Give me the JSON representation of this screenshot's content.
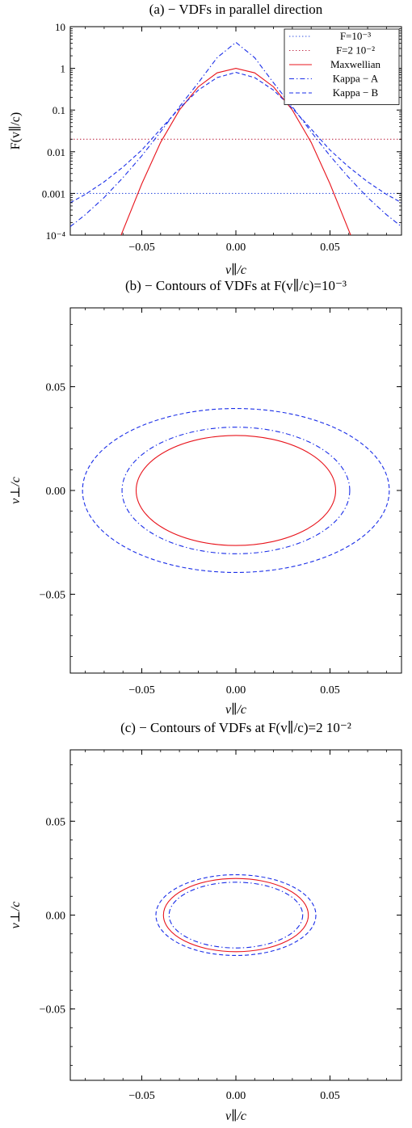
{
  "chart_data": [
    {
      "type": "line",
      "title": "(a) − VDFs in parallel direction",
      "xlabel": "v∥/c",
      "ylabel": "F(v∥/c)",
      "xlim": [
        -0.088,
        0.088
      ],
      "ylim": [
        0.0001,
        10
      ],
      "yscale": "log",
      "grid": false,
      "legend_position": "top-right",
      "x_ticks": [
        -0.05,
        0.0,
        0.05
      ],
      "x_tick_labels": [
        "−0.05",
        "0.00",
        "0.05"
      ],
      "y_ticks": [
        0.0001,
        0.001,
        0.01,
        0.1,
        1,
        10
      ],
      "y_tick_labels": [
        "10⁻⁴",
        "0.001",
        "0.01",
        "0.1",
        "1",
        "10"
      ],
      "series": [
        {
          "name": "F=10⁻³",
          "style": "dotted",
          "color": "#3050e0",
          "x": [
            -0.088,
            0.088
          ],
          "y": [
            0.001,
            0.001
          ]
        },
        {
          "name": "F=2 10⁻²",
          "style": "dotted",
          "color": "#c0304a",
          "x": [
            -0.088,
            0.088
          ],
          "y": [
            0.02,
            0.02
          ]
        },
        {
          "name": "Maxwellian",
          "style": "solid",
          "color": "#e8141c",
          "x": [
            -0.061,
            -0.05,
            -0.04,
            -0.03,
            -0.02,
            -0.01,
            0.0,
            0.01,
            0.02,
            0.03,
            0.04,
            0.05,
            0.061
          ],
          "y": [
            0.0001,
            0.0017,
            0.0168,
            0.1,
            0.36,
            0.78,
            1.0,
            0.78,
            0.36,
            0.1,
            0.0168,
            0.0017,
            0.0001
          ]
        },
        {
          "name": "Kappa − A",
          "style": "dashdot",
          "color": "#1a2ee8",
          "x": [
            -0.088,
            -0.08,
            -0.07,
            -0.06,
            -0.05,
            -0.04,
            -0.03,
            -0.02,
            -0.01,
            0.0,
            0.01,
            0.02,
            0.03,
            0.04,
            0.05,
            0.06,
            0.07,
            0.08,
            0.088
          ],
          "y": [
            0.00016,
            0.00031,
            0.0008,
            0.0024,
            0.008,
            0.03,
            0.12,
            0.45,
            1.8,
            4.2,
            1.8,
            0.45,
            0.12,
            0.03,
            0.008,
            0.0024,
            0.0008,
            0.00031,
            0.00016
          ]
        },
        {
          "name": "Kappa − B",
          "style": "dashed",
          "color": "#1a2ee8",
          "x": [
            -0.088,
            -0.08,
            -0.07,
            -0.06,
            -0.05,
            -0.04,
            -0.03,
            -0.02,
            -0.01,
            0.0,
            0.01,
            0.02,
            0.03,
            0.04,
            0.05,
            0.06,
            0.07,
            0.08,
            0.088
          ],
          "y": [
            0.0006,
            0.00095,
            0.0019,
            0.0043,
            0.011,
            0.035,
            0.11,
            0.3,
            0.6,
            0.8,
            0.6,
            0.3,
            0.11,
            0.035,
            0.011,
            0.0043,
            0.0019,
            0.00095,
            0.0006
          ]
        }
      ]
    },
    {
      "type": "contour",
      "title": "(b) − Contours of VDFs at F(v∥/c)=10⁻³",
      "xlabel": "v∥/c",
      "ylabel": "v⊥/c",
      "xlim": [
        -0.088,
        0.088
      ],
      "ylim": [
        -0.088,
        0.088
      ],
      "grid": false,
      "x_ticks": [
        -0.05,
        0.0,
        0.05
      ],
      "x_tick_labels": [
        "−0.05",
        "0.00",
        "0.05"
      ],
      "y_ticks": [
        -0.05,
        0.0,
        0.05
      ],
      "y_tick_labels": [
        "−0.05",
        "0.00",
        "0.05"
      ],
      "series": [
        {
          "name": "Maxwellian",
          "style": "solid",
          "color": "#e8141c",
          "semi_axis_parallel": 0.053,
          "semi_axis_perp": 0.0265
        },
        {
          "name": "Kappa − A",
          "style": "dashdot",
          "color": "#1a2ee8",
          "semi_axis_parallel": 0.0605,
          "semi_axis_perp": 0.0305
        },
        {
          "name": "Kappa − B",
          "style": "dashed",
          "color": "#1a2ee8",
          "semi_axis_parallel": 0.0815,
          "semi_axis_perp": 0.0395
        }
      ]
    },
    {
      "type": "contour",
      "title": "(c) − Contours of VDFs at F(v∥/c)=2 10⁻²",
      "xlabel": "v∥/c",
      "ylabel": "v⊥/c",
      "xlim": [
        -0.088,
        0.088
      ],
      "ylim": [
        -0.088,
        0.088
      ],
      "grid": false,
      "x_ticks": [
        -0.05,
        0.0,
        0.05
      ],
      "x_tick_labels": [
        "−0.05",
        "0.00",
        "0.05"
      ],
      "y_ticks": [
        -0.05,
        0.0,
        0.05
      ],
      "y_tick_labels": [
        "−0.05",
        "0.00",
        "0.05"
      ],
      "series": [
        {
          "name": "Maxwellian",
          "style": "solid",
          "color": "#e8141c",
          "semi_axis_parallel": 0.0385,
          "semi_axis_perp": 0.0195
        },
        {
          "name": "Kappa − A",
          "style": "dashdot",
          "color": "#1a2ee8",
          "semi_axis_parallel": 0.0355,
          "semi_axis_perp": 0.0175
        },
        {
          "name": "Kappa − B",
          "style": "dashed",
          "color": "#1a2ee8",
          "semi_axis_parallel": 0.0425,
          "semi_axis_perp": 0.0215
        }
      ]
    }
  ]
}
